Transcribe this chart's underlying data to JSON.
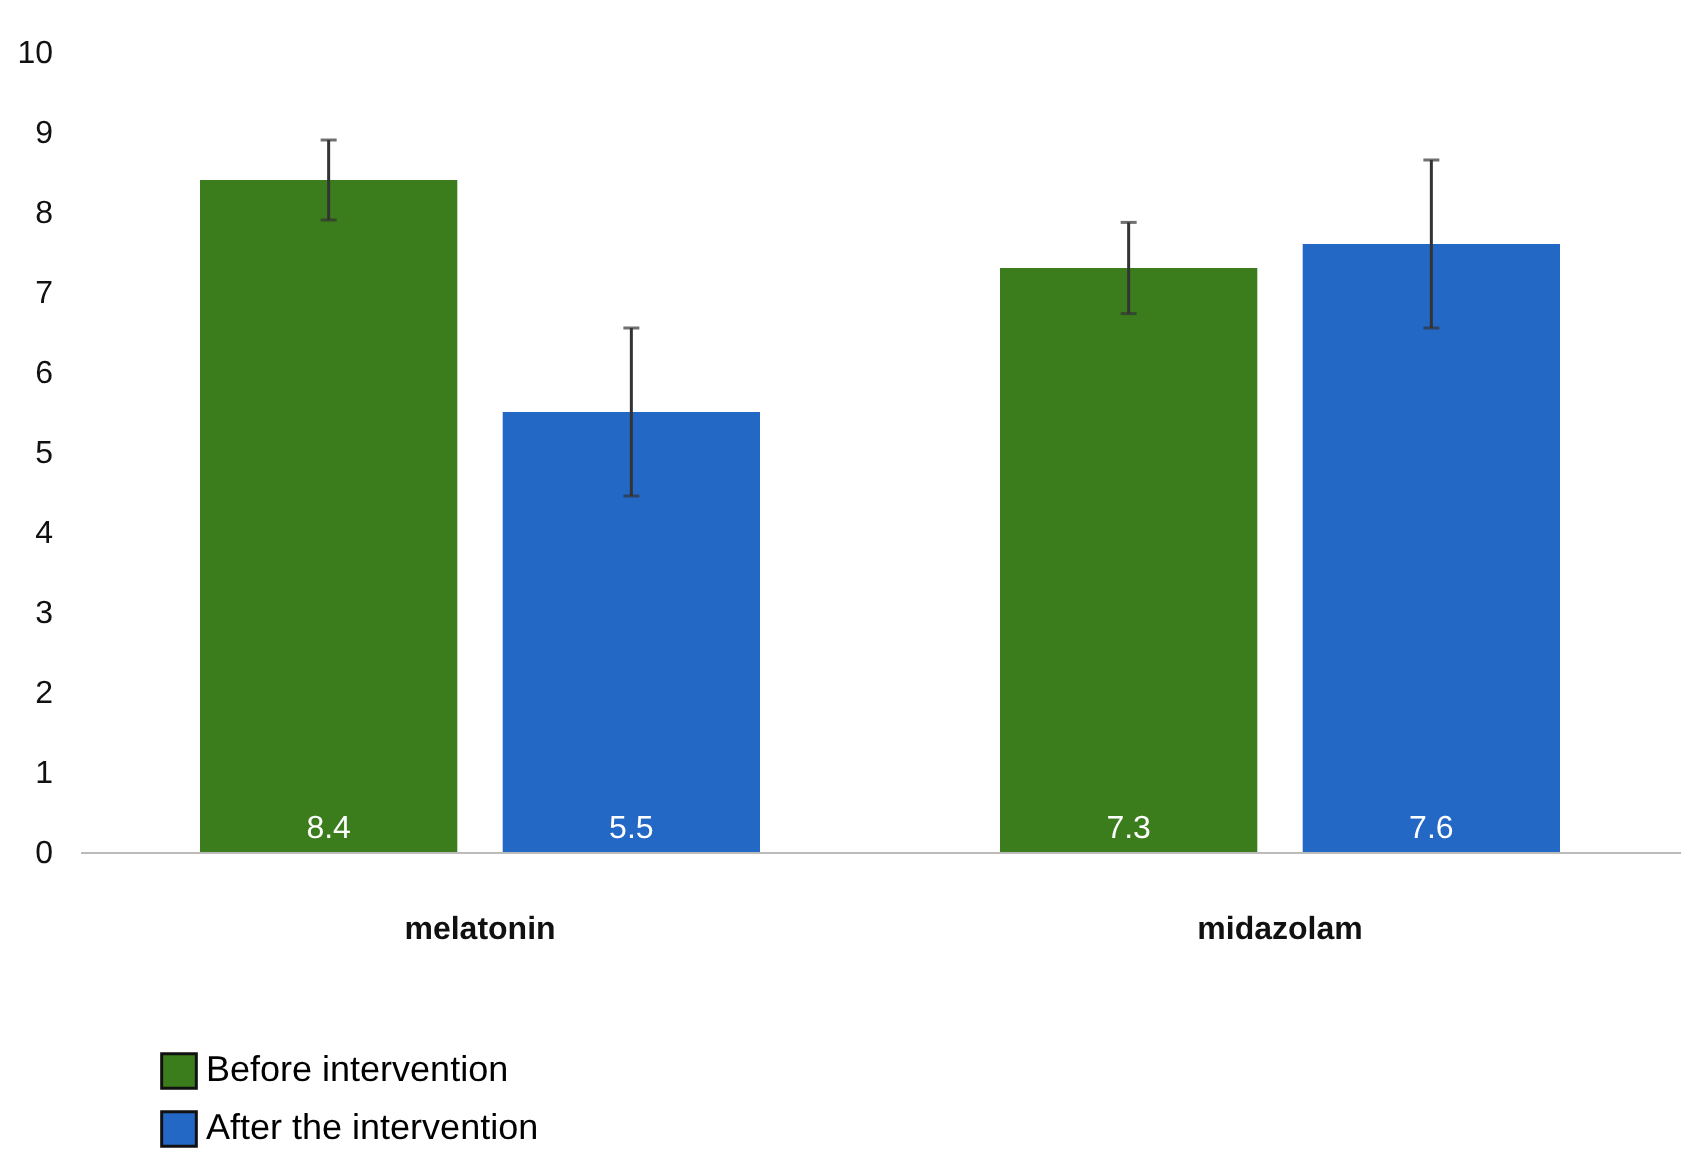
{
  "chart_data": {
    "type": "bar",
    "categories": [
      "melatonin",
      "midazolam"
    ],
    "series": [
      {
        "name": "Before intervention",
        "color": "#3b7d1c",
        "values": [
          8.4,
          7.3
        ],
        "errors": [
          0.5,
          0.57
        ]
      },
      {
        "name": "After the intervention",
        "color": "#2468c6",
        "values": [
          5.5,
          7.6
        ],
        "errors": [
          1.05,
          1.05
        ]
      }
    ],
    "ylim": [
      0,
      10
    ],
    "yticks": [
      0,
      1,
      2,
      3,
      4,
      5,
      6,
      7,
      8,
      9,
      10
    ],
    "grid": false,
    "legend": "bottom left",
    "data_labels": true
  }
}
